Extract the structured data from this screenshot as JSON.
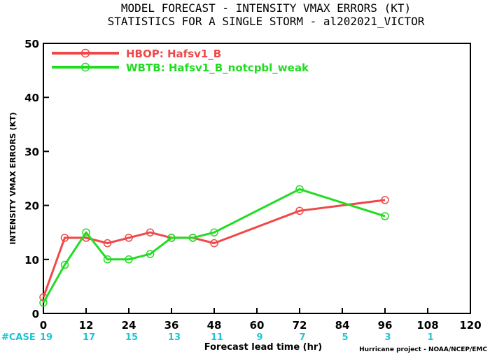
{
  "chart_data": {
    "type": "line",
    "title": "MODEL FORECAST - INTENSITY VMAX ERRORS (KT)",
    "subtitle": "STATISTICS FOR A SINGLE STORM - al202021_VICTOR",
    "xlabel": "Forecast lead time (hr)",
    "ylabel": "INTENSITY VMAX ERRORS (KT)",
    "xlim": [
      0,
      120
    ],
    "ylim": [
      0,
      50
    ],
    "xticks": [
      0,
      12,
      24,
      36,
      48,
      60,
      72,
      84,
      96,
      108,
      120
    ],
    "yticks": [
      0,
      10,
      20,
      30,
      40,
      50
    ],
    "grid": false,
    "legend_position": "top-left",
    "series": [
      {
        "name": "HBOP: Hafsv1_B",
        "color": "#f04848",
        "x": [
          0,
          6,
          12,
          18,
          24,
          30,
          36,
          42,
          48,
          72,
          96
        ],
        "y": [
          3,
          14,
          14,
          13,
          14,
          15,
          14,
          14,
          13,
          19,
          21
        ]
      },
      {
        "name": "WBTB: Hafsv1_B_notcpbl_weak",
        "color": "#22dc22",
        "x": [
          0,
          6,
          12,
          18,
          24,
          30,
          36,
          42,
          48,
          72,
          96
        ],
        "y": [
          2,
          9,
          15,
          10,
          10,
          11,
          14,
          14,
          15,
          23,
          18
        ]
      }
    ],
    "cases_label": "#CASE",
    "cases": [
      {
        "x": 0,
        "n": "19"
      },
      {
        "x": 12,
        "n": "17"
      },
      {
        "x": 24,
        "n": "15"
      },
      {
        "x": 36,
        "n": "13"
      },
      {
        "x": 48,
        "n": "11"
      },
      {
        "x": 60,
        "n": "9"
      },
      {
        "x": 72,
        "n": "7"
      },
      {
        "x": 84,
        "n": "5"
      },
      {
        "x": 96,
        "n": "3"
      },
      {
        "x": 108,
        "n": "1"
      }
    ],
    "cases_color": "#1cc4d6",
    "credit": "Hurricane project - NOAA/NCEP/EMC"
  }
}
